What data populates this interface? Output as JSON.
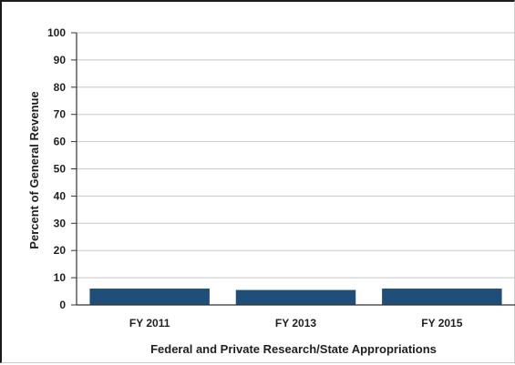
{
  "chart_data": {
    "type": "bar",
    "categories": [
      "FY 2011",
      "FY 2013",
      "FY 2015"
    ],
    "values": [
      6,
      5.5,
      6
    ],
    "xlabel": "Federal and Private Research/State Appropriations",
    "ylabel": "Percent of General Revenue",
    "ylim": [
      0,
      100
    ],
    "yticks": [
      0,
      10,
      20,
      30,
      40,
      50,
      60,
      70,
      80,
      90,
      100
    ],
    "grid": true,
    "legend": "none",
    "bar_color": "#1f4e79",
    "grid_color": "#c8c8c8",
    "axis_color": "#333333"
  }
}
